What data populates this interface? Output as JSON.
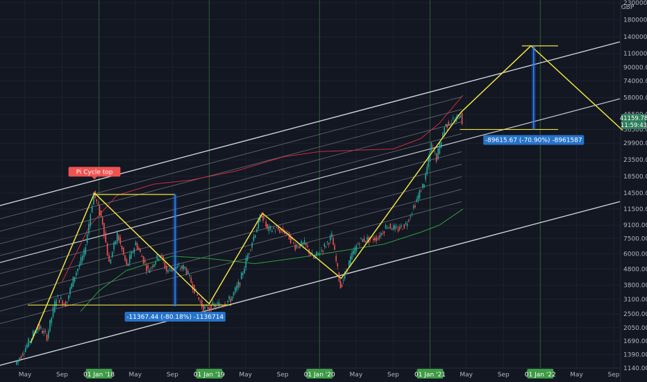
{
  "chart_data": {
    "type": "line",
    "title": "",
    "currency": "GBP",
    "scale": "log",
    "ylim": [
      1140,
      230000
    ],
    "price_ticks": [
      230000,
      180000,
      140000,
      110000,
      90000,
      74000,
      58000,
      45500,
      36500,
      29900,
      23500,
      18500,
      14500,
      11500,
      9100,
      7500,
      6000,
      4800,
      3800,
      3100,
      2500,
      2050,
      1690,
      1390,
      1140
    ],
    "x_labels": [
      {
        "label": "May",
        "date": "2017-05-01",
        "highlight": false
      },
      {
        "label": "Sep",
        "date": "2017-09-01",
        "highlight": false
      },
      {
        "label": "01 Jan '18",
        "date": "2018-01-01",
        "highlight": true
      },
      {
        "label": "May",
        "date": "2018-05-01",
        "highlight": false
      },
      {
        "label": "Sep",
        "date": "2018-09-01",
        "highlight": false
      },
      {
        "label": "01 Jan '19",
        "date": "2019-01-01",
        "highlight": true
      },
      {
        "label": "May",
        "date": "2019-05-01",
        "highlight": false
      },
      {
        "label": "Sep",
        "date": "2019-09-01",
        "highlight": false
      },
      {
        "label": "01 Jan '20",
        "date": "2020-01-01",
        "highlight": true
      },
      {
        "label": "May",
        "date": "2020-05-01",
        "highlight": false
      },
      {
        "label": "Sep",
        "date": "2020-09-01",
        "highlight": false
      },
      {
        "label": "01 Jan '21",
        "date": "2021-01-01",
        "highlight": true
      },
      {
        "label": "May",
        "date": "2021-05-01",
        "highlight": false
      },
      {
        "label": "Sep",
        "date": "2021-09-01",
        "highlight": false
      },
      {
        "label": "01 Jan '22",
        "date": "2022-01-01",
        "highlight": true
      },
      {
        "label": "May",
        "date": "2022-05-01",
        "highlight": false
      },
      {
        "label": "Sep",
        "date": "2022-09-01",
        "highlight": false
      }
    ],
    "last_price": "41159.78",
    "last_price_time": "11:59:43",
    "price_series": [
      {
        "date": "2017-04-01",
        "value": 1200
      },
      {
        "date": "2017-05-15",
        "value": 1650
      },
      {
        "date": "2017-06-15",
        "value": 2100
      },
      {
        "date": "2017-07-15",
        "value": 1800
      },
      {
        "date": "2017-08-15",
        "value": 3200
      },
      {
        "date": "2017-09-15",
        "value": 2900
      },
      {
        "date": "2017-10-15",
        "value": 4400
      },
      {
        "date": "2017-11-15",
        "value": 6000
      },
      {
        "date": "2017-12-17",
        "value": 14500
      },
      {
        "date": "2018-01-15",
        "value": 9500
      },
      {
        "date": "2018-02-06",
        "value": 5200
      },
      {
        "date": "2018-03-05",
        "value": 8000
      },
      {
        "date": "2018-04-05",
        "value": 5000
      },
      {
        "date": "2018-05-05",
        "value": 7000
      },
      {
        "date": "2018-06-15",
        "value": 4700
      },
      {
        "date": "2018-07-25",
        "value": 6000
      },
      {
        "date": "2018-08-15",
        "value": 4700
      },
      {
        "date": "2018-09-15",
        "value": 4900
      },
      {
        "date": "2018-10-15",
        "value": 4900
      },
      {
        "date": "2018-11-20",
        "value": 3400
      },
      {
        "date": "2018-12-15",
        "value": 2700
      },
      {
        "date": "2019-01-15",
        "value": 2800
      },
      {
        "date": "2019-02-15",
        "value": 2900
      },
      {
        "date": "2019-03-15",
        "value": 3100
      },
      {
        "date": "2019-04-15",
        "value": 4000
      },
      {
        "date": "2019-05-15",
        "value": 6300
      },
      {
        "date": "2019-06-26",
        "value": 10800
      },
      {
        "date": "2019-07-15",
        "value": 8500
      },
      {
        "date": "2019-08-15",
        "value": 8600
      },
      {
        "date": "2019-09-15",
        "value": 8200
      },
      {
        "date": "2019-10-15",
        "value": 6700
      },
      {
        "date": "2019-11-15",
        "value": 6900
      },
      {
        "date": "2019-12-15",
        "value": 5600
      },
      {
        "date": "2020-01-15",
        "value": 6500
      },
      {
        "date": "2020-02-13",
        "value": 7700
      },
      {
        "date": "2020-03-13",
        "value": 3700
      },
      {
        "date": "2020-04-15",
        "value": 5600
      },
      {
        "date": "2020-05-15",
        "value": 7300
      },
      {
        "date": "2020-06-15",
        "value": 7400
      },
      {
        "date": "2020-07-15",
        "value": 7600
      },
      {
        "date": "2020-08-15",
        "value": 9100
      },
      {
        "date": "2020-09-15",
        "value": 8500
      },
      {
        "date": "2020-10-15",
        "value": 9200
      },
      {
        "date": "2020-11-15",
        "value": 12500
      },
      {
        "date": "2020-12-15",
        "value": 17000
      },
      {
        "date": "2021-01-08",
        "value": 29000
      },
      {
        "date": "2021-01-25",
        "value": 24000
      },
      {
        "date": "2021-02-20",
        "value": 38000
      },
      {
        "date": "2021-03-10",
        "value": 41000
      },
      {
        "date": "2021-04-01",
        "value": 42500
      },
      {
        "date": "2021-04-14",
        "value": 46000
      },
      {
        "date": "2021-04-20",
        "value": 41160
      }
    ],
    "ma_long_series": [
      {
        "date": "2017-11-01",
        "value": 2600
      },
      {
        "date": "2018-01-01",
        "value": 3500
      },
      {
        "date": "2018-04-01",
        "value": 4700
      },
      {
        "date": "2018-09-01",
        "value": 5800
      },
      {
        "date": "2019-01-01",
        "value": 5600
      },
      {
        "date": "2019-06-01",
        "value": 5200
      },
      {
        "date": "2019-11-01",
        "value": 5700
      },
      {
        "date": "2020-03-01",
        "value": 6200
      },
      {
        "date": "2020-08-01",
        "value": 6900
      },
      {
        "date": "2020-12-01",
        "value": 8200
      },
      {
        "date": "2021-02-01",
        "value": 9100
      },
      {
        "date": "2021-04-20",
        "value": 11500
      }
    ],
    "ma_red_series": [
      {
        "date": "2017-09-01",
        "value": 4000
      },
      {
        "date": "2017-12-01",
        "value": 9000
      },
      {
        "date": "2018-03-01",
        "value": 14000
      },
      {
        "date": "2018-07-01",
        "value": 16500
      },
      {
        "date": "2018-11-01",
        "value": 17500
      },
      {
        "date": "2019-04-01",
        "value": 20000
      },
      {
        "date": "2019-09-01",
        "value": 24500
      },
      {
        "date": "2020-01-01",
        "value": 26500
      },
      {
        "date": "2020-05-01",
        "value": 27000
      },
      {
        "date": "2020-09-01",
        "value": 27500
      },
      {
        "date": "2020-12-01",
        "value": 32000
      },
      {
        "date": "2021-02-01",
        "value": 40000
      },
      {
        "date": "2021-04-20",
        "value": 60000
      }
    ],
    "zigzag_path": [
      {
        "date": "2017-05-20",
        "value": 1650
      },
      {
        "date": "2017-12-17",
        "value": 14500
      },
      {
        "date": "2019-01-01",
        "value": 2900
      },
      {
        "date": "2019-06-26",
        "value": 10800
      },
      {
        "date": "2020-03-13",
        "value": 4200
      },
      {
        "date": "2021-04-14",
        "value": 47000
      },
      {
        "date": "2021-12-01",
        "value": 123000
      },
      {
        "date": "2022-10-01",
        "value": 36000
      }
    ],
    "range_measures": [
      {
        "label": "-11367.44 (-80.18%) -1136714",
        "x_date": "2018-09-10",
        "y_from": 14200,
        "y_to": 2800
      },
      {
        "label": "-89615.67 (-70.90%) -8961587",
        "x_date": "2021-12-10",
        "y_from": 122000,
        "y_to": 36500
      }
    ],
    "horizontal_levels": [
      {
        "from": "2017-05-10",
        "to": "2019-03-15",
        "value": 2850
      },
      {
        "from": "2017-12-17",
        "to": "2018-09-10",
        "value": 14200
      },
      {
        "from": "2021-11-01",
        "to": "2022-03-01",
        "value": 123000
      },
      {
        "from": "2021-04-10",
        "to": "2022-03-01",
        "value": 36500
      }
    ],
    "annotation": {
      "text": "Pi Cycle top",
      "date": "2017-12-17",
      "value": 17500
    }
  }
}
